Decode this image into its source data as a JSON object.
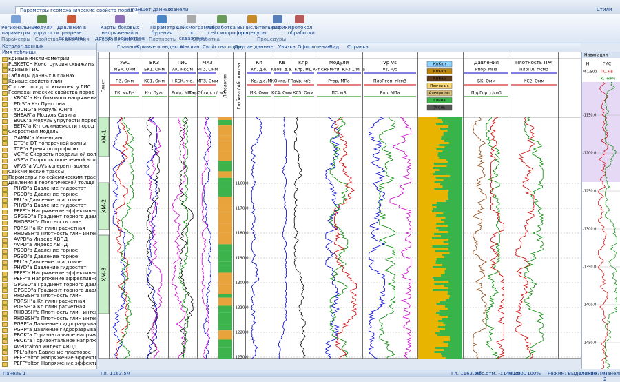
{
  "titlebar": {
    "tabs": [
      "Параметры геомеханические свойств пород",
      "Планшет данных",
      "Панели"
    ],
    "styles": "Стили"
  },
  "ribbon": {
    "buttons": [
      "Региональные параметры",
      "Модули упругости",
      "Давления в разрезе скважины",
      "Карты боковых напряжений и других параметров",
      "Параметры бурения",
      "Сейсмограмма по скважине",
      "Обработка сейсмопрофиля",
      "Вычислительные процедуры",
      "Графики",
      "Протокол обработки"
    ],
    "groups": [
      "Параметры",
      "Свойства и давления в скважине",
      "Горизонтальные напряжения",
      "Плотность ПЖ",
      "Обработка сейсмоданных",
      "Процедуры"
    ]
  },
  "catalog": {
    "title": "Каталог данных",
    "header": "Имя таблицы",
    "items": [
      "Кривые инклинометрии",
      "PLSKETCH Конструкция скважины",
      "Кривые ГИС",
      "Таблицы данных в глинах",
      "Кривые свойств глин",
      "Состав пород по комплексу ГИС",
      "Геомеханические свойства пород",
      "KBOK\"a К-т бокового напряжения",
      "PDIS\"a К-т Пуассона",
      "YOUNG\"a Модуль Юнга",
      "SHEAR\"a Модуль Сдвига",
      "BULK\"a Модуль упругости пород",
      "BETA\"a К-т сжимаемости пород",
      "Скоростная модель",
      "GAMM\"a Интенданс",
      "DTS\"a DT поперечной волны",
      "TCP\"a Время по профилю",
      "VCP\"a Скорость продольной волны",
      "VSP\"a Скорость поперечной волны",
      "VPVS\"a Vp/Vs когерент волны",
      "Сейсмические трассы",
      "Параметры по сейсмическим трассам",
      "Давления в геологической толще",
      "PHYD\"a Давление гидростат",
      "PGEO\"a Давление горное",
      "PPL\"a Давление пластовое",
      "PHYD\"a Давление гидростат",
      "PEFF\"a Напряжение эффективное",
      "GPGEO\"a Градиент горного давления",
      "RHOBSH\"a Плотность глин",
      "PORSH\"a Кп глин расчетная",
      "RHOBSH\"a Плотность глин интегрированная",
      "AVPD\"a Индекс АВПД",
      "AVPD\"a Индекс АВПД",
      "PGEO\"a Давление горное",
      "PGEO\"a Давление горное",
      "PPL\"a Давление пластовое",
      "PHYD\"a Давление гидростат",
      "PEFF\"a Напряжение эффективное",
      "PEFF\"a Напряжение эффективное",
      "GPGEO\"a Градиент горного давления",
      "GPGEO\"a Градиент горного давления",
      "RHOBSH\"a Плотность глин",
      "PORSH\"a Кп глин расчетная",
      "PORSH\"a Кп глин расчетная",
      "RHOBSH\"a Плотность глин интегрированная",
      "RHOBSH\"a Плотность глин интегрированная",
      "PGRP\"a Давление гидроразрыва",
      "PGRP\"a Давление гидроразрыва",
      "PBOK\"a Горизонтальное напряжение",
      "PBOK\"a Горизонтальное напряжение",
      "AVPD\"alton Индекс АВПД",
      "PPL\"alton Давление пластовое",
      "PEFF\"alton Напряжение эффективное",
      "PEFF\"alton Напряжение эффективное"
    ]
  },
  "toolbar": {
    "tabs": [
      "Главное",
      "Кривые и индексы",
      "Инклин",
      "Свойства пород",
      "Другие данные",
      "Увязка",
      "Оформление",
      "Вид",
      "Справка"
    ]
  },
  "log": {
    "layer": "Пласт",
    "tracks": [
      "УЭС",
      "БКЗ",
      "ГИС",
      "МКЗ",
      "Литология",
      "Глубина / Абсолютна",
      "Кп",
      "Кв",
      "Кпр",
      "Модули",
      "Vp Vs",
      "МОДЕЛЬ",
      "Давления",
      "Плотность ПЖ"
    ],
    "curves": [
      "МБК, Омм",
      "БК1, Омм",
      "АК, мкс/м",
      "МГЗ, Омм",
      "Кп, д.е.",
      "Квов, д.е.",
      "Кпр, мД",
      "К-т сжим-ти, Ю-3 1/МПа",
      "Vs, м/с",
      "Рпор, МПа",
      "ПлрПЛ, г/см3",
      "ПЗ, Омм",
      "КС1, Омм",
      "НКБК, у.е.",
      "МПЗ, Омм",
      "Кв, д.е.",
      "МКОмга, ГПа",
      "Vp, м/с",
      "Ргор, МПа",
      "ПлрПгоп, г/см3",
      "БК, Омм",
      "КС2, Омм",
      "ГК, мкР/ч",
      "К-т Пуас",
      "Ргид, МПа",
      "ПлрОбгид, г/см3",
      "ИК, Омм",
      "КС4, Омм",
      "КС5, Омм",
      "ПС, мВ",
      "Рпл, МПа",
      "ПлрГор, г/см3"
    ],
    "model_legend": [
      "КпКвл",
      "КпКвп",
      "КпКво",
      "Песчаник",
      "Алевролит",
      "Глина",
      "Уголь"
    ],
    "zones": [
      "ХМ-1",
      "ХМ-2",
      "ХМ-3"
    ],
    "depths": [
      "1160.0",
      "1170.0",
      "1180.0",
      "1190.0",
      "1200.0",
      "1210.0",
      "1220.0",
      "1230.0"
    ]
  },
  "navigation": {
    "title": "Навигация",
    "col1": "Н",
    "col2": "ГИС",
    "scale": "М 1:500",
    "curve1": "ПС, мВ",
    "curve2": "ГК, мкР/ч",
    "depths": [
      "-1150.0",
      "-1200.0",
      "-1250.0",
      "-1300.0",
      "-1350.0",
      "-1400.0",
      "-1450.0"
    ]
  },
  "status": {
    "left": "Панель 1",
    "depth": "Гл. 1163.5м",
    "depth2": "Гл. 1163.5м",
    "abs": "Абс.отм. -1146.2м",
    "scale": "М1:500",
    "zoom": "100%",
    "mode": "Режим: Выделение",
    "size": "272x807мм",
    "right": "Панель 2"
  }
}
